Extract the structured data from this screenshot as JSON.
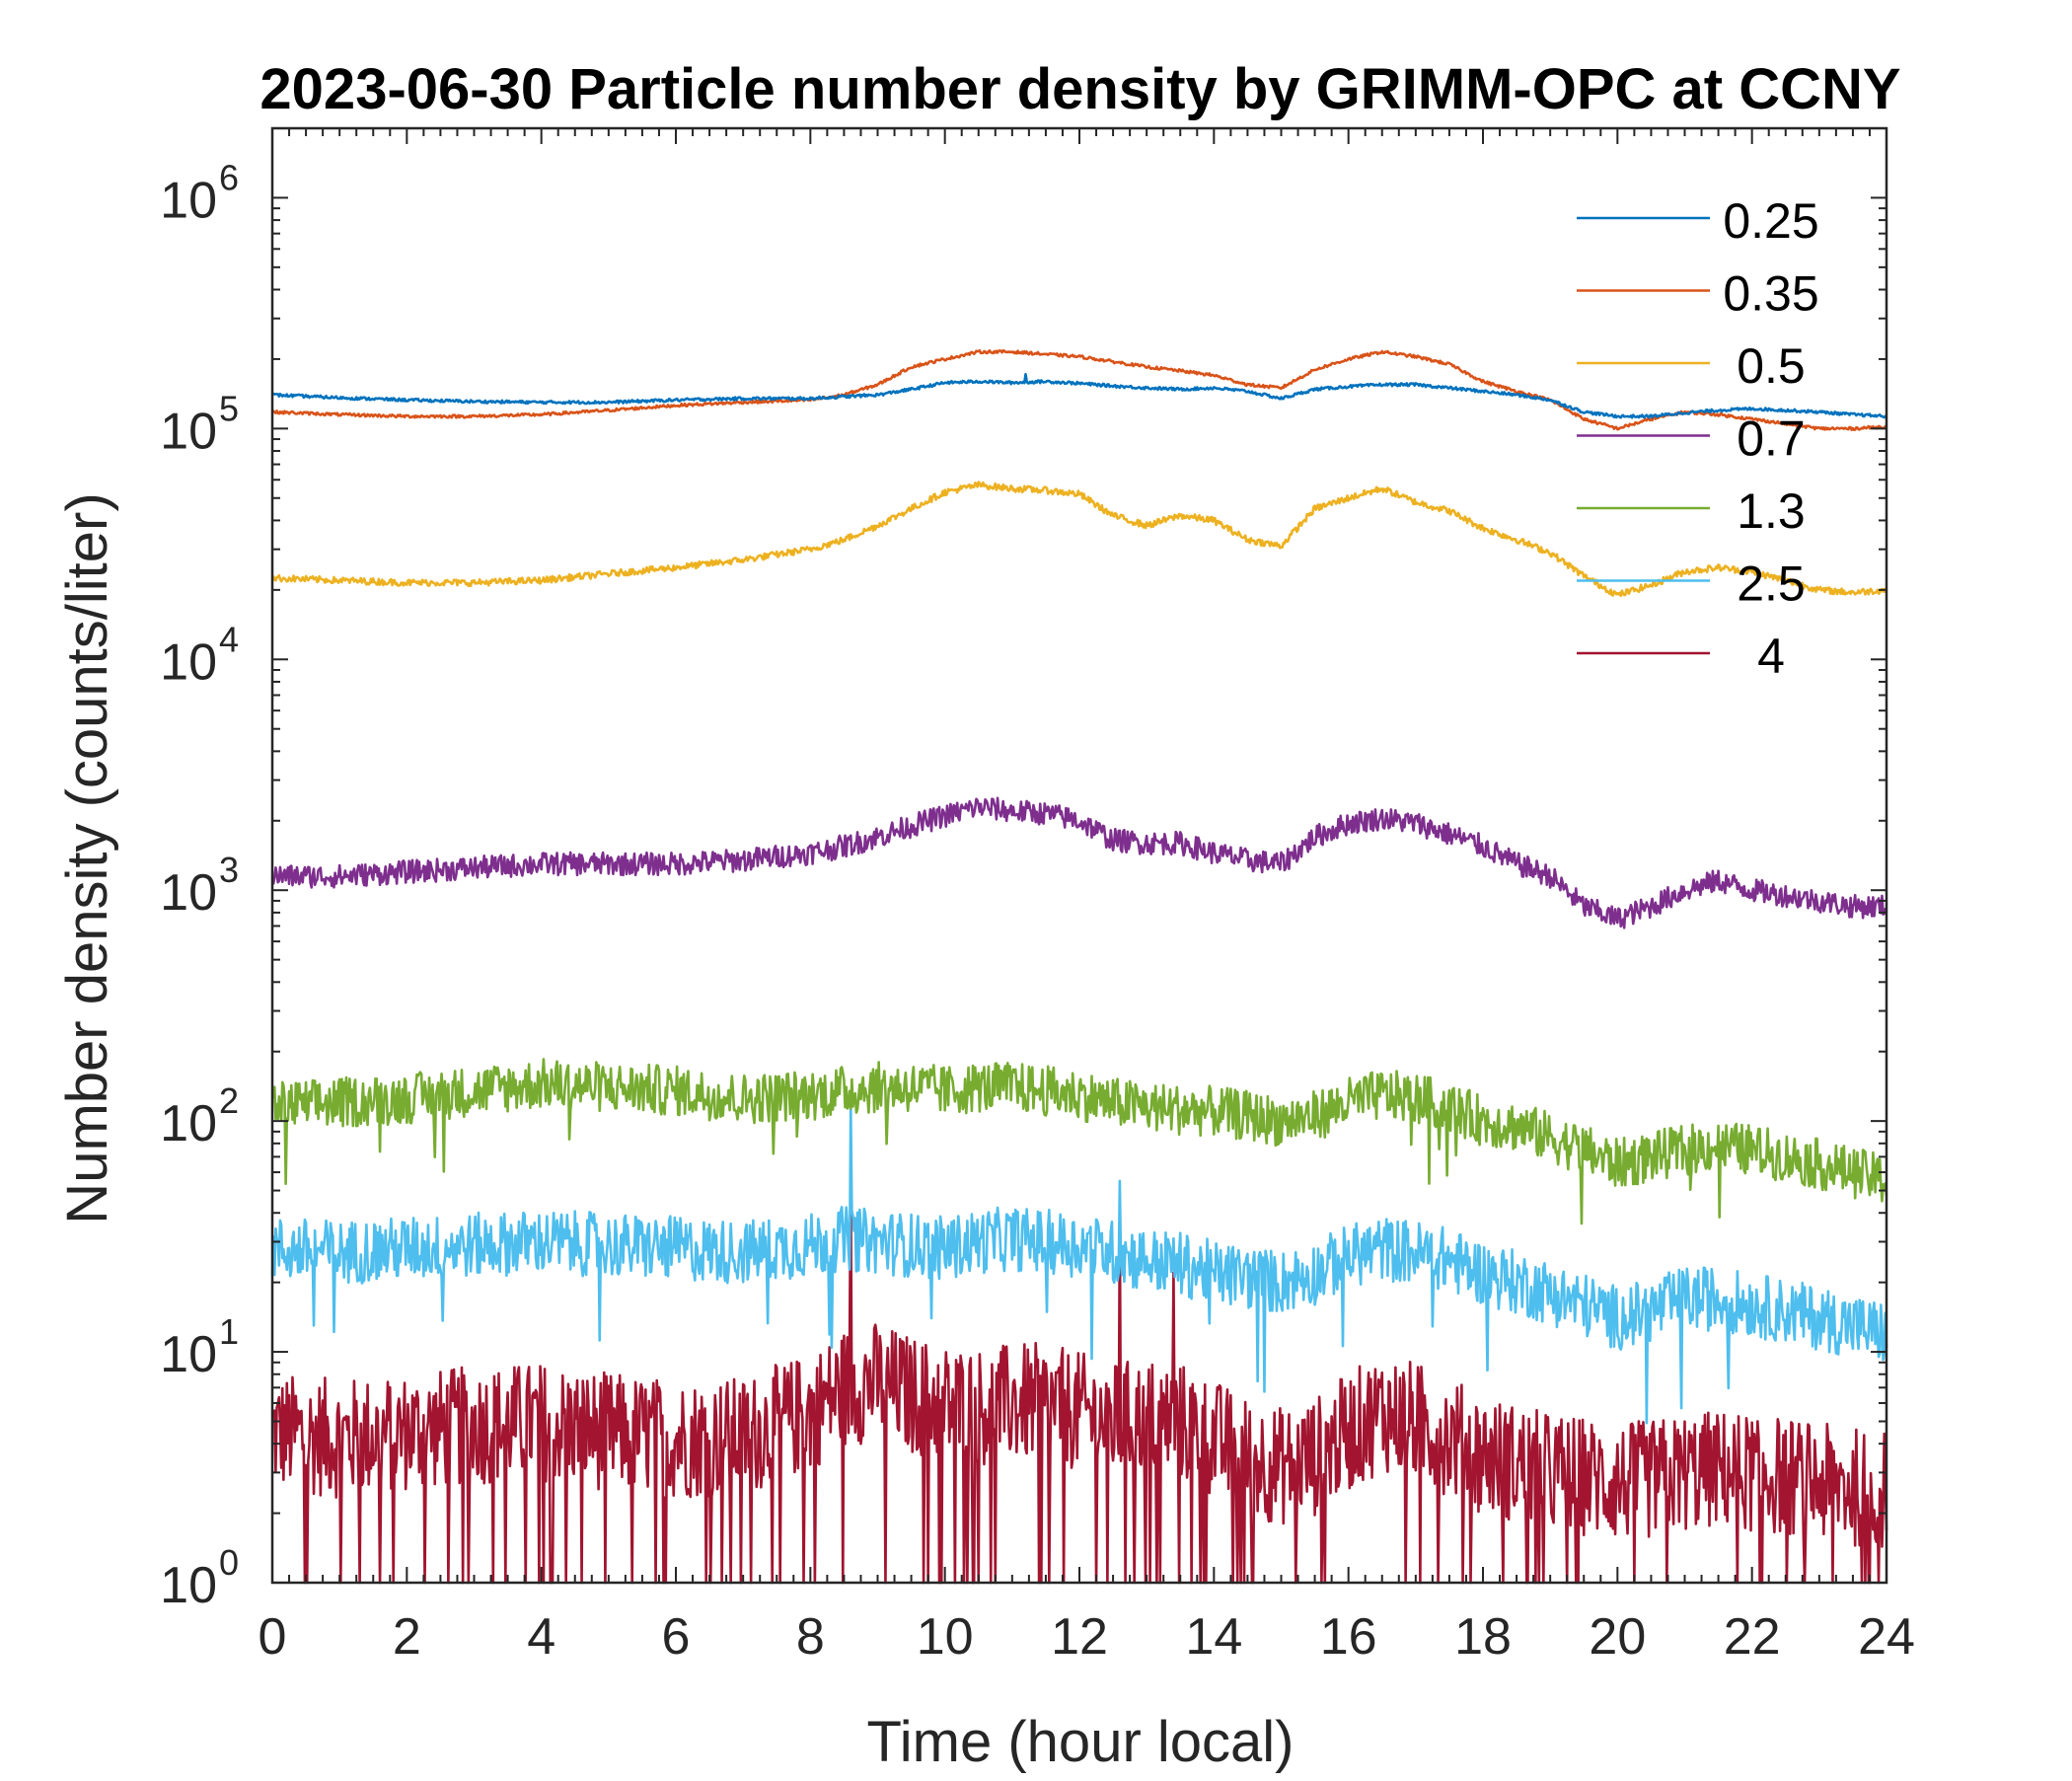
{
  "chart_data": {
    "type": "line",
    "title": "2023-06-30 Particle number density by GRIMM-OPC at CCNY",
    "xlabel": "Time (hour local)",
    "ylabel": "Number density (counts/liter)",
    "x_range": [
      0,
      24
    ],
    "y_range": [
      1,
      2000000
    ],
    "y_scale": "log",
    "x_ticks": [
      "0",
      "2",
      "4",
      "6",
      "8",
      "10",
      "12",
      "14",
      "16",
      "18",
      "20",
      "22",
      "24"
    ],
    "y_ticks": [
      {
        "base": "10",
        "exp": "0"
      },
      {
        "base": "10",
        "exp": "1"
      },
      {
        "base": "10",
        "exp": "2"
      },
      {
        "base": "10",
        "exp": "3"
      },
      {
        "base": "10",
        "exp": "4"
      },
      {
        "base": "10",
        "exp": "5"
      },
      {
        "base": "10",
        "exp": "6"
      }
    ],
    "grid": false,
    "legend_position": "top-right",
    "series": [
      {
        "name": "0.25",
        "color": "#0072BD",
        "x": [
          0,
          1,
          2,
          3,
          4,
          5,
          6,
          7,
          8,
          9,
          9.5,
          10,
          10.5,
          11,
          11.5,
          12,
          12.5,
          13,
          13.5,
          14,
          14.5,
          15,
          15.5,
          16,
          16.5,
          17,
          17.5,
          18,
          18.5,
          19,
          19.5,
          20,
          20.5,
          21,
          21.5,
          22,
          22.5,
          23,
          23.5,
          24
        ],
        "y": [
          140000,
          136000,
          133000,
          131000,
          130000,
          130000,
          133000,
          135000,
          135000,
          140000,
          148000,
          158000,
          160000,
          158000,
          160000,
          157000,
          153000,
          150000,
          148000,
          150000,
          145000,
          135000,
          148000,
          152000,
          155000,
          155000,
          150000,
          145000,
          140000,
          133000,
          118000,
          113000,
          113000,
          117000,
          120000,
          122000,
          120000,
          118000,
          115000,
          113000
        ]
      },
      {
        "name": "0.35",
        "color": "#D95319",
        "x": [
          0,
          1,
          2,
          3,
          4,
          5,
          6,
          7,
          8,
          8.5,
          9,
          9.5,
          10,
          10.5,
          11,
          11.5,
          12,
          12.5,
          13,
          13.5,
          14,
          14.5,
          15,
          15.5,
          16,
          16.5,
          17,
          17.5,
          18,
          18.5,
          19,
          19.5,
          20,
          20.5,
          21,
          21.5,
          22,
          22.5,
          23,
          23.5,
          24
        ],
        "y": [
          118000,
          115000,
          113000,
          113000,
          115000,
          120000,
          126000,
          130000,
          133000,
          140000,
          155000,
          185000,
          200000,
          215000,
          215000,
          210000,
          205000,
          195000,
          185000,
          178000,
          170000,
          155000,
          150000,
          180000,
          200000,
          215000,
          205000,
          190000,
          160000,
          145000,
          133000,
          110000,
          100000,
          110000,
          118000,
          115000,
          110000,
          105000,
          100000,
          100000,
          102000
        ]
      },
      {
        "name": "0.5",
        "color": "#EDB120",
        "x": [
          0,
          1,
          2,
          3,
          4,
          5,
          6,
          7,
          8,
          8.5,
          9,
          9.5,
          10,
          10.5,
          11,
          11.5,
          12,
          12.5,
          13,
          13.5,
          14,
          14.5,
          15,
          15.5,
          16,
          16.5,
          17,
          17.5,
          18,
          18.5,
          19,
          19.5,
          20,
          20.5,
          21,
          21.5,
          22,
          22.5,
          23,
          23.5,
          24
        ],
        "y": [
          22500,
          22000,
          21500,
          21500,
          22000,
          23500,
          25000,
          27000,
          30000,
          33000,
          38000,
          45000,
          53000,
          57000,
          55000,
          54000,
          52000,
          42000,
          38000,
          42000,
          40000,
          33000,
          31000,
          45000,
          50000,
          55000,
          48000,
          44000,
          37000,
          33000,
          29000,
          23000,
          19000,
          21000,
          24000,
          25000,
          24000,
          22000,
          20000,
          19500,
          20000
        ]
      },
      {
        "name": "0.7",
        "color": "#7E2F8E",
        "x": [
          0,
          1,
          2,
          3,
          4,
          5,
          6,
          7,
          8,
          8.5,
          9,
          9.5,
          10,
          10.5,
          11,
          11.5,
          12,
          12.5,
          13,
          13.5,
          14,
          14.5,
          15,
          15.5,
          16,
          16.5,
          17,
          17.5,
          18,
          18.5,
          19,
          19.5,
          20,
          20.5,
          21,
          21.5,
          22,
          22.5,
          23,
          23.5,
          24
        ],
        "y": [
          1150,
          1150,
          1200,
          1250,
          1300,
          1300,
          1300,
          1350,
          1450,
          1550,
          1700,
          1900,
          2100,
          2300,
          2200,
          2150,
          2000,
          1650,
          1600,
          1600,
          1450,
          1350,
          1300,
          1700,
          1950,
          2050,
          1950,
          1750,
          1550,
          1300,
          1150,
          850,
          750,
          850,
          1000,
          1100,
          1000,
          950,
          900,
          850,
          850
        ]
      },
      {
        "name": "1.3",
        "color": "#77AC30",
        "x": [
          0,
          1,
          2,
          3,
          4,
          5,
          6,
          7,
          8,
          8.5,
          9,
          9.5,
          10,
          10.5,
          11,
          11.5,
          12,
          12.5,
          13,
          13.5,
          14,
          14.5,
          15,
          15.5,
          16,
          16.5,
          17,
          17.5,
          18,
          18.5,
          19,
          19.5,
          20,
          20.5,
          21,
          21.5,
          22,
          22.5,
          23,
          23.5,
          24
        ],
        "y": [
          115,
          120,
          125,
          135,
          145,
          140,
          135,
          125,
          130,
          135,
          140,
          140,
          135,
          140,
          140,
          135,
          130,
          120,
          115,
          112,
          110,
          105,
          100,
          105,
          120,
          130,
          125,
          115,
          100,
          95,
          85,
          75,
          65,
          70,
          75,
          78,
          75,
          70,
          65,
          60,
          55
        ]
      },
      {
        "name": "2.5",
        "color": "#4DBEEE",
        "x": [
          0,
          1,
          2,
          3,
          4,
          5,
          6,
          7,
          8,
          8.5,
          9,
          9.5,
          10,
          10.5,
          11,
          11.5,
          12,
          12.5,
          13,
          13.5,
          14,
          14.5,
          15,
          15.5,
          16,
          16.5,
          17,
          17.5,
          18,
          18.5,
          19,
          19.5,
          20,
          20.5,
          21,
          21.5,
          22,
          22.5,
          23,
          23.5,
          24
        ],
        "y": [
          28,
          27,
          28,
          29,
          30,
          29,
          28,
          27,
          29,
          31,
          30,
          29,
          28,
          30,
          31,
          30,
          29,
          27,
          25,
          24,
          22,
          21,
          20,
          22,
          26,
          28,
          27,
          25,
          22,
          20,
          18,
          16,
          14,
          15,
          17,
          17,
          16,
          15,
          14,
          13,
          12
        ]
      },
      {
        "name": "4",
        "color": "#A2142F",
        "x": [
          0,
          1,
          2,
          3,
          4,
          5,
          6,
          7,
          8,
          8.5,
          9,
          9.5,
          10,
          10.5,
          11,
          11.5,
          12,
          12.5,
          13,
          13.5,
          14,
          14.5,
          15,
          15.5,
          16,
          16.5,
          17,
          17.5,
          18,
          18.5,
          19,
          19.5,
          20,
          20.5,
          21,
          21.5,
          22,
          22.5,
          23,
          23.5,
          24
        ],
        "y": [
          4.5,
          4.2,
          4.5,
          4.8,
          5,
          4.5,
          4.2,
          4.3,
          5.5,
          7,
          7.5,
          6.5,
          6,
          5.8,
          6,
          6,
          5.5,
          5,
          5.2,
          5,
          4.2,
          3.5,
          3.2,
          3.5,
          4.5,
          5.5,
          5,
          4.3,
          3.6,
          3.3,
          3,
          2.9,
          2.7,
          2.8,
          3,
          3.1,
          3,
          2.9,
          2.7,
          2.6,
          2.5
        ]
      }
    ],
    "spikes": [
      {
        "series": "2.5",
        "x": 8.6,
        "y": 120
      },
      {
        "series": "4",
        "x": 8.6,
        "y": 60
      },
      {
        "series": "2.5",
        "x": 12.6,
        "y": 55
      },
      {
        "series": "4",
        "x": 12.6,
        "y": 38
      },
      {
        "series": "4",
        "x": 13.4,
        "y": 22
      },
      {
        "series": "0.25",
        "x": 11.2,
        "y": 172000
      }
    ]
  }
}
